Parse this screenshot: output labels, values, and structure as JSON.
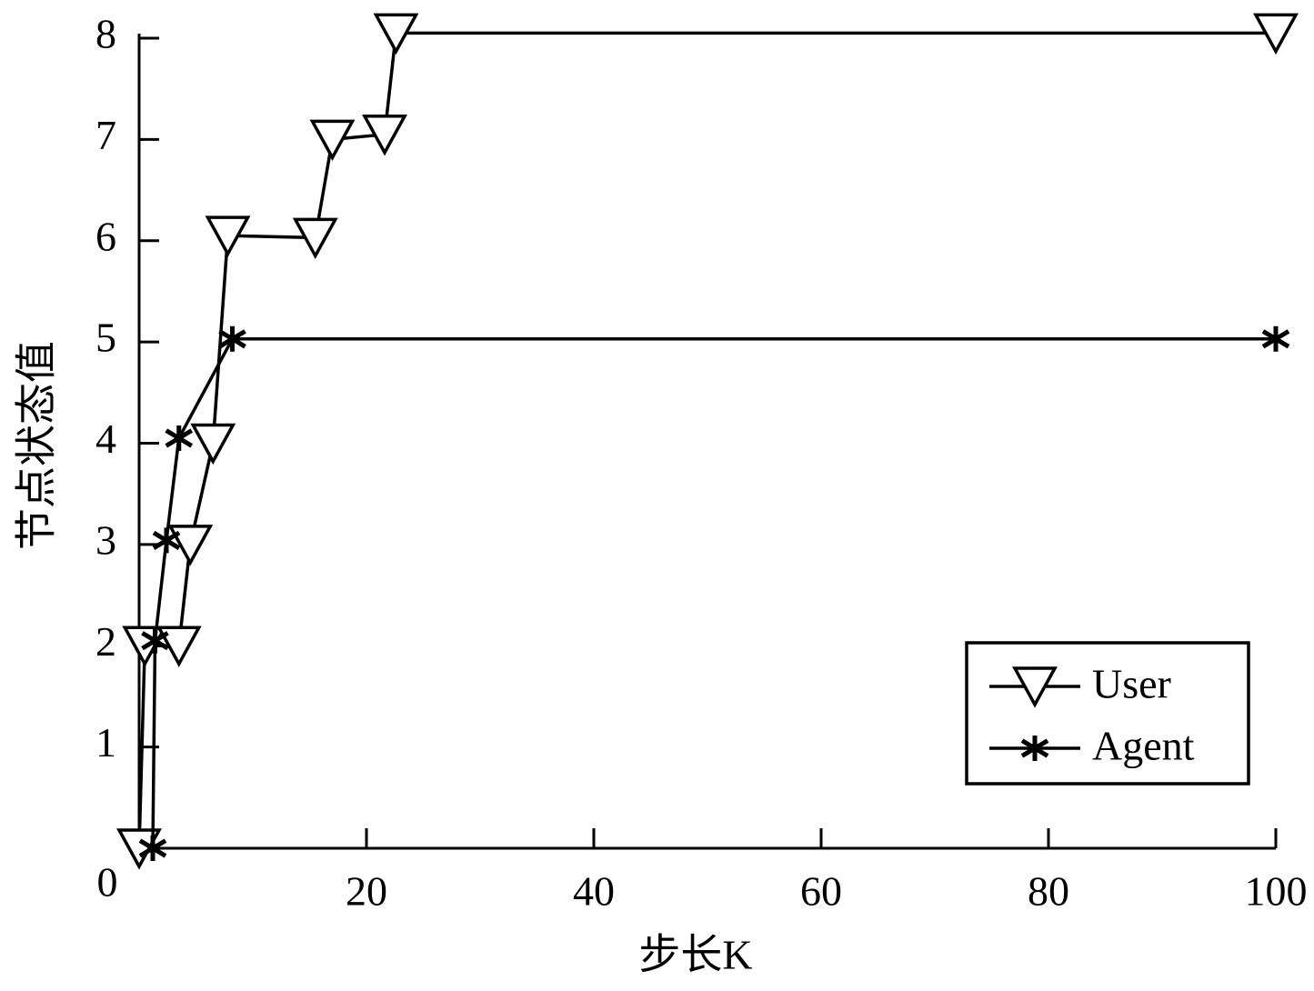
{
  "chart_data": {
    "type": "line",
    "xlabel": "步长K",
    "ylabel": "节点状态值",
    "xlim": [
      0,
      100
    ],
    "ylim": [
      0,
      8
    ],
    "xticks": [
      0,
      20,
      40,
      60,
      80,
      100
    ],
    "yticks": [
      1,
      2,
      3,
      4,
      5,
      6,
      7,
      8
    ],
    "legend": "lower right",
    "series": [
      {
        "name": "User",
        "color": "#000000",
        "marker": "triangle-down",
        "x": [
          0,
          0.5,
          3.5,
          4.5,
          6.5,
          7.8,
          15.5,
          17,
          21.6,
          22.6,
          100
        ],
        "values": [
          0,
          2,
          2,
          3,
          4,
          6.05,
          6.03,
          7,
          7.05,
          8.05,
          8.05
        ]
      },
      {
        "name": "Agent",
        "color": "#000000",
        "marker": "asterisk",
        "x": [
          1.2,
          1.4,
          2.4,
          3.5,
          8.2,
          100
        ],
        "values": [
          0,
          2.05,
          3.04,
          4.05,
          5.03,
          5.03
        ]
      }
    ]
  }
}
